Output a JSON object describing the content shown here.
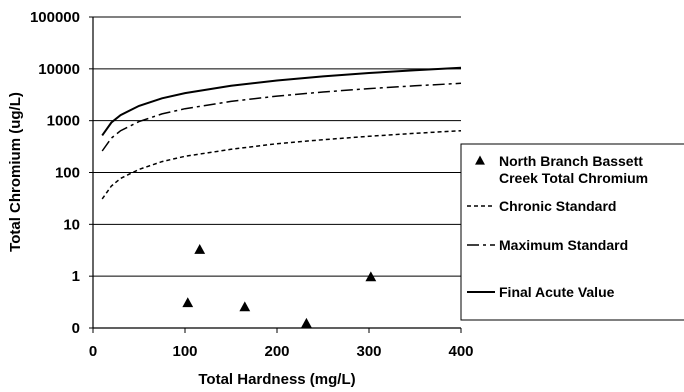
{
  "chart_data": {
    "type": "line",
    "xlabel": "Total Hardness (mg/L)",
    "ylabel": "Total Chromium (ug/L)",
    "xlim": [
      0,
      400
    ],
    "ylim": [
      0,
      100000
    ],
    "y_scale": "log",
    "grid": "horizontal",
    "x_ticks": [
      "0",
      "100",
      "200",
      "300",
      "400"
    ],
    "y_ticks": [
      "0",
      "1",
      "10",
      "100",
      "1000",
      "10000",
      "100000"
    ],
    "legend_position": "right",
    "legend": [
      {
        "label_lines": [
          "North Branch Bassett",
          "Creek Total Chromium"
        ],
        "style": "triangle"
      },
      {
        "label_lines": [
          "Chronic Standard"
        ],
        "style": "dashed"
      },
      {
        "label_lines": [
          "Maximum Standard"
        ],
        "style": "dashdot"
      },
      {
        "label_lines": [
          "Final Acute Value"
        ],
        "style": "solid"
      }
    ],
    "series": [
      {
        "name": "North Branch Bassett Creek Total Chromium",
        "style": "triangle",
        "points": [
          {
            "x": 103,
            "y": 0.3
          },
          {
            "x": 116,
            "y": 3.2
          },
          {
            "x": 165,
            "y": 0.25
          },
          {
            "x": 232,
            "y": 0.12
          },
          {
            "x": 302,
            "y": 0.95
          }
        ]
      },
      {
        "name": "Chronic Standard",
        "style": "dashed",
        "points": [
          {
            "x": 10,
            "y": 31
          },
          {
            "x": 20,
            "y": 55
          },
          {
            "x": 30,
            "y": 77
          },
          {
            "x": 50,
            "y": 115
          },
          {
            "x": 75,
            "y": 162
          },
          {
            "x": 100,
            "y": 205
          },
          {
            "x": 150,
            "y": 280
          },
          {
            "x": 200,
            "y": 360
          },
          {
            "x": 250,
            "y": 430
          },
          {
            "x": 300,
            "y": 500
          },
          {
            "x": 350,
            "y": 570
          },
          {
            "x": 400,
            "y": 640
          }
        ]
      },
      {
        "name": "Maximum Standard",
        "style": "dashdot",
        "points": [
          {
            "x": 10,
            "y": 260
          },
          {
            "x": 20,
            "y": 460
          },
          {
            "x": 30,
            "y": 640
          },
          {
            "x": 50,
            "y": 960
          },
          {
            "x": 75,
            "y": 1350
          },
          {
            "x": 100,
            "y": 1700
          },
          {
            "x": 150,
            "y": 2350
          },
          {
            "x": 200,
            "y": 2980
          },
          {
            "x": 250,
            "y": 3580
          },
          {
            "x": 300,
            "y": 4150
          },
          {
            "x": 350,
            "y": 4700
          },
          {
            "x": 400,
            "y": 5250
          }
        ]
      },
      {
        "name": "Final Acute Value",
        "style": "solid",
        "points": [
          {
            "x": 10,
            "y": 520
          },
          {
            "x": 20,
            "y": 920
          },
          {
            "x": 30,
            "y": 1280
          },
          {
            "x": 50,
            "y": 1930
          },
          {
            "x": 75,
            "y": 2700
          },
          {
            "x": 100,
            "y": 3400
          },
          {
            "x": 150,
            "y": 4700
          },
          {
            "x": 200,
            "y": 5950
          },
          {
            "x": 250,
            "y": 7150
          },
          {
            "x": 300,
            "y": 8300
          },
          {
            "x": 350,
            "y": 9400
          },
          {
            "x": 400,
            "y": 10500
          }
        ]
      }
    ]
  }
}
